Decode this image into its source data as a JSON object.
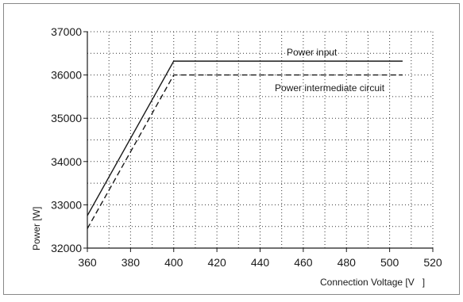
{
  "chart_data": {
    "type": "line",
    "xlabel": "Connection Voltage [V   ]",
    "ylabel": "Power [W]",
    "xlim": [
      360,
      520
    ],
    "ylim": [
      32000,
      37000
    ],
    "x_ticks": [
      360,
      380,
      400,
      420,
      440,
      460,
      480,
      500,
      520
    ],
    "y_ticks": [
      32000,
      33000,
      34000,
      35000,
      36000,
      37000
    ],
    "x_tick_labels": [
      "360",
      "380",
      "400",
      "420",
      "440",
      "460",
      "480",
      "500",
      "520"
    ],
    "y_tick_labels": [
      "32000",
      "33000",
      "34000",
      "35000",
      "36000",
      "37000"
    ],
    "grid": true,
    "grid_style": "dotted",
    "series": [
      {
        "name": "Power input",
        "line_style": "solid",
        "x": [
          360,
          400,
          506
        ],
        "y": [
          32750,
          36320,
          36320
        ]
      },
      {
        "name": "Power intermediate circuit",
        "line_style": "dashed",
        "x": [
          360,
          400,
          506
        ],
        "y": [
          32450,
          36000,
          36000
        ]
      }
    ]
  }
}
